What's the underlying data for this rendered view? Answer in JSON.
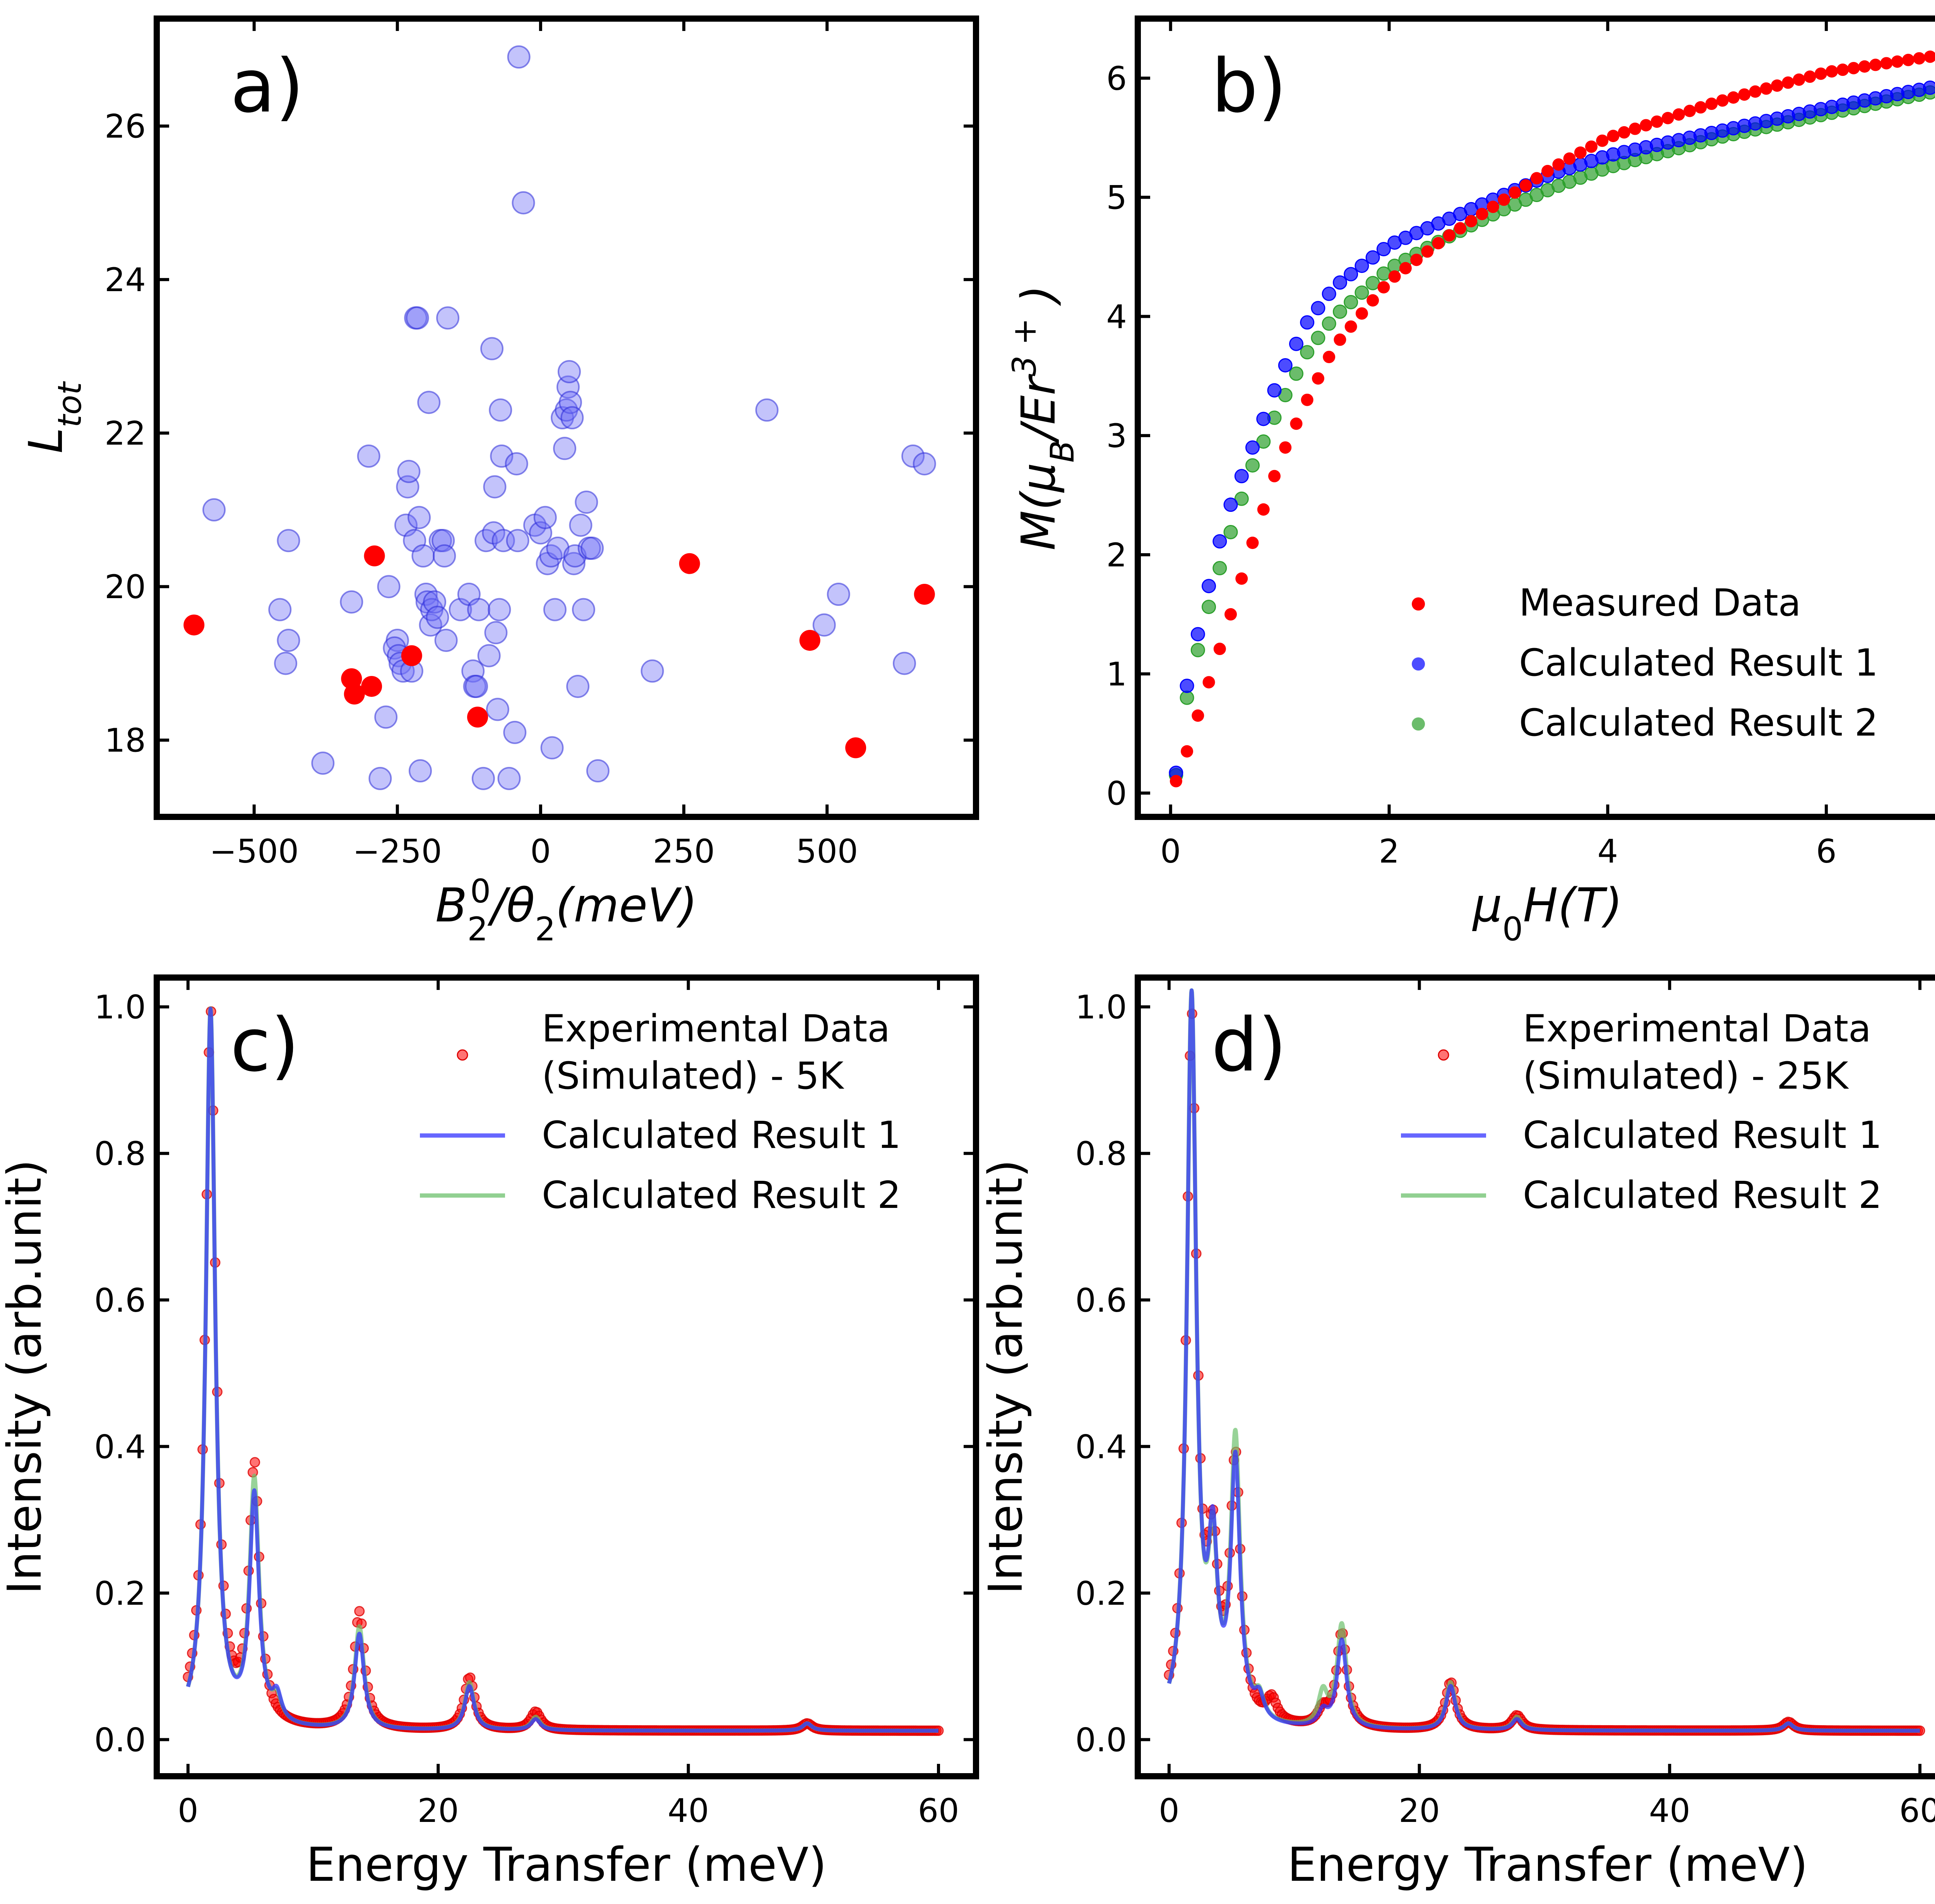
{
  "colors": {
    "red": "#ff0000",
    "blue": "#0000ff",
    "green": "#2ca02c",
    "blue_line": "#3333ff",
    "green_line": "#6cc06c",
    "scatter_blue": "#6f6ff5",
    "scatter_red": "#ff0000"
  },
  "chart_data": [
    {
      "id": "a",
      "type": "scatter",
      "panel_label": "a)",
      "xlabel": "B_2^0/θ_2(meV)",
      "ylabel": "L_tot",
      "xlim": [
        -670,
        760
      ],
      "ylim": [
        17,
        27.4
      ],
      "xticks": [
        -500,
        -250,
        0,
        250,
        500
      ],
      "xtick_labels": [
        "−500",
        "−250",
        "0",
        "250",
        "500"
      ],
      "yticks": [
        18,
        20,
        22,
        24,
        26
      ],
      "ytick_labels": [
        "18",
        "20",
        "22",
        "24",
        "26"
      ],
      "series": [
        {
          "name": "candidates",
          "color_key": "scatter_blue",
          "points": [
            [
              -570,
              21.0
            ],
            [
              -440,
              20.6
            ],
            [
              -455,
              19.7
            ],
            [
              -440,
              19.3
            ],
            [
              -445,
              19.0
            ],
            [
              -380,
              17.7
            ],
            [
              -330,
              19.8
            ],
            [
              -300,
              21.7
            ],
            [
              -280,
              17.5
            ],
            [
              -270,
              18.3
            ],
            [
              -265,
              20.0
            ],
            [
              -250,
              19.3
            ],
            [
              -255,
              19.2
            ],
            [
              -248,
              19.1
            ],
            [
              -245,
              19.0
            ],
            [
              -240,
              18.9
            ],
            [
              -235,
              20.8
            ],
            [
              -232,
              21.3
            ],
            [
              -230,
              21.5
            ],
            [
              -225,
              18.9
            ],
            [
              -220,
              20.6
            ],
            [
              -218,
              23.5
            ],
            [
              -215,
              23.5
            ],
            [
              -212,
              20.9
            ],
            [
              -210,
              17.6
            ],
            [
              -205,
              20.4
            ],
            [
              -200,
              19.9
            ],
            [
              -198,
              19.8
            ],
            [
              -195,
              22.4
            ],
            [
              -192,
              19.5
            ],
            [
              -190,
              19.7
            ],
            [
              -185,
              19.8
            ],
            [
              -180,
              19.6
            ],
            [
              -175,
              20.6
            ],
            [
              -170,
              20.6
            ],
            [
              -168,
              20.4
            ],
            [
              -165,
              19.3
            ],
            [
              -162,
              23.5
            ],
            [
              -140,
              19.7
            ],
            [
              -125,
              19.9
            ],
            [
              -118,
              18.9
            ],
            [
              -115,
              18.7
            ],
            [
              -112,
              18.7
            ],
            [
              -108,
              19.7
            ],
            [
              -100,
              17.5
            ],
            [
              -95,
              20.6
            ],
            [
              -90,
              19.1
            ],
            [
              -85,
              23.1
            ],
            [
              -82,
              20.7
            ],
            [
              -80,
              21.3
            ],
            [
              -78,
              19.4
            ],
            [
              -75,
              18.4
            ],
            [
              -72,
              19.7
            ],
            [
              -70,
              22.3
            ],
            [
              -68,
              21.7
            ],
            [
              -65,
              20.6
            ],
            [
              -55,
              17.5
            ],
            [
              -45,
              18.1
            ],
            [
              -42,
              21.6
            ],
            [
              -40,
              20.6
            ],
            [
              -38,
              26.9
            ],
            [
              -30,
              25.0
            ],
            [
              -10,
              20.8
            ],
            [
              0,
              20.7
            ],
            [
              8,
              20.9
            ],
            [
              12,
              20.3
            ],
            [
              18,
              20.4
            ],
            [
              20,
              17.9
            ],
            [
              25,
              19.7
            ],
            [
              30,
              20.5
            ],
            [
              38,
              22.2
            ],
            [
              42,
              21.8
            ],
            [
              45,
              22.3
            ],
            [
              48,
              22.6
            ],
            [
              50,
              22.8
            ],
            [
              52,
              22.4
            ],
            [
              55,
              22.2
            ],
            [
              58,
              20.3
            ],
            [
              60,
              20.4
            ],
            [
              65,
              18.7
            ],
            [
              70,
              20.8
            ],
            [
              75,
              19.7
            ],
            [
              80,
              21.1
            ],
            [
              85,
              20.5
            ],
            [
              90,
              20.5
            ],
            [
              100,
              17.6
            ],
            [
              195,
              18.9
            ],
            [
              395,
              22.3
            ],
            [
              495,
              19.5
            ],
            [
              520,
              19.9
            ],
            [
              635,
              19.0
            ],
            [
              650,
              21.7
            ],
            [
              670,
              21.6
            ]
          ]
        },
        {
          "name": "selected",
          "color_key": "scatter_red",
          "points": [
            [
              -605,
              19.5
            ],
            [
              -290,
              20.4
            ],
            [
              -330,
              18.8
            ],
            [
              -325,
              18.6
            ],
            [
              -295,
              18.7
            ],
            [
              -225,
              19.1
            ],
            [
              -110,
              18.3
            ],
            [
              260,
              20.3
            ],
            [
              470,
              19.3
            ],
            [
              550,
              17.9
            ],
            [
              670,
              19.9
            ]
          ]
        }
      ]
    },
    {
      "id": "b",
      "type": "scatter",
      "panel_label": "b)",
      "xlabel": "μ_0H(T)",
      "ylabel": "M(μ_B/Er^3+)",
      "xlim": [
        -0.3,
        7.2
      ],
      "ylim": [
        -0.2,
        6.5
      ],
      "xticks": [
        0,
        2,
        4,
        6
      ],
      "xtick_labels": [
        "0",
        "2",
        "4",
        "6"
      ],
      "yticks": [
        0,
        1,
        2,
        3,
        4,
        5,
        6
      ],
      "ytick_labels": [
        "0",
        "1",
        "2",
        "3",
        "4",
        "5",
        "6"
      ],
      "x_range": [
        0.05,
        6.95
      ],
      "n_points": 70,
      "legend": {
        "placement": "lower-right",
        "entries": [
          "Measured Data",
          "Calculated Result 1",
          "Calculated Result 2"
        ]
      },
      "series": [
        {
          "name": "Measured Data",
          "color_key": "red",
          "points": [
            [
              0.05,
              0.1
            ],
            [
              0.15,
              0.35
            ],
            [
              0.25,
              0.65
            ],
            [
              0.5,
              1.35
            ],
            [
              0.75,
              2.1
            ],
            [
              1.0,
              2.8
            ],
            [
              1.25,
              3.3
            ],
            [
              1.5,
              3.75
            ],
            [
              2.0,
              4.3
            ],
            [
              2.5,
              4.65
            ],
            [
              3.0,
              4.95
            ],
            [
              3.5,
              5.25
            ],
            [
              4.0,
              5.5
            ],
            [
              5.0,
              5.8
            ],
            [
              6.0,
              6.05
            ],
            [
              6.95,
              6.18
            ]
          ]
        },
        {
          "name": "Calculated Result 1",
          "color_key": "blue",
          "points": [
            [
              0.05,
              0.17
            ],
            [
              0.15,
              0.9
            ],
            [
              0.3,
              1.55
            ],
            [
              0.5,
              2.3
            ],
            [
              0.75,
              2.9
            ],
            [
              1.0,
              3.5
            ],
            [
              1.25,
              3.95
            ],
            [
              1.5,
              4.25
            ],
            [
              2.0,
              4.6
            ],
            [
              2.5,
              4.8
            ],
            [
              3.0,
              5.0
            ],
            [
              3.5,
              5.2
            ],
            [
              4.0,
              5.35
            ],
            [
              5.0,
              5.55
            ],
            [
              6.0,
              5.75
            ],
            [
              6.95,
              5.92
            ]
          ]
        },
        {
          "name": "Calculated Result 2",
          "color_key": "green",
          "points": [
            [
              0.05,
              0.15
            ],
            [
              0.15,
              0.8
            ],
            [
              0.3,
              1.4
            ],
            [
              0.5,
              2.05
            ],
            [
              0.75,
              2.75
            ],
            [
              1.0,
              3.25
            ],
            [
              1.25,
              3.7
            ],
            [
              1.5,
              4.0
            ],
            [
              2.0,
              4.4
            ],
            [
              2.5,
              4.65
            ],
            [
              3.0,
              4.88
            ],
            [
              3.5,
              5.08
            ],
            [
              4.0,
              5.25
            ],
            [
              5.0,
              5.5
            ],
            [
              6.0,
              5.7
            ],
            [
              6.95,
              5.88
            ]
          ]
        }
      ]
    },
    {
      "id": "c",
      "type": "line",
      "panel_label": "c)",
      "xlabel": "Energy Transfer (meV)",
      "ylabel": "Intensity (arb.unit)",
      "xlim": [
        -2.5,
        63
      ],
      "ylim": [
        -0.05,
        1.04
      ],
      "xticks": [
        0,
        20,
        40,
        60
      ],
      "xtick_labels": [
        "0",
        "20",
        "40",
        "60"
      ],
      "yticks": [
        0.0,
        0.2,
        0.4,
        0.6,
        0.8,
        1.0
      ],
      "ytick_labels": [
        "0.0",
        "0.2",
        "0.4",
        "0.6",
        "0.8",
        "1.0"
      ],
      "x_range": [
        0,
        60
      ],
      "legend": {
        "placement": "upper-right",
        "entries": [
          "Experimental Data\n(Simulated) - 5K",
          "Calculated Result 1",
          "Calculated Result 2"
        ]
      },
      "series": [
        {
          "name": "Experimental Data (Simulated) - 5K",
          "style": "markers",
          "color_key": "red",
          "gamma": 0.5,
          "offset": 0.012,
          "peaks": [
            [
              1.8,
              0.98
            ],
            [
              5.3,
              0.35
            ],
            [
              13.7,
              0.16
            ],
            [
              22.5,
              0.072
            ],
            [
              27.8,
              0.025
            ],
            [
              49.5,
              0.01
            ]
          ]
        },
        {
          "name": "Calculated Result 1",
          "style": "line",
          "color_key": "blue_line",
          "gamma": 0.45,
          "offset": 0.012,
          "peaks": [
            [
              1.8,
              0.98
            ],
            [
              5.3,
              0.31
            ],
            [
              7.1,
              0.035
            ],
            [
              13.7,
              0.13
            ],
            [
              22.5,
              0.06
            ],
            [
              27.8,
              0.015
            ],
            [
              49.5,
              0.01
            ]
          ]
        },
        {
          "name": "Calculated Result 2",
          "style": "line",
          "color_key": "green_line",
          "gamma": 0.45,
          "offset": 0.012,
          "peaks": [
            [
              1.8,
              0.98
            ],
            [
              5.3,
              0.33
            ],
            [
              7.1,
              0.03
            ],
            [
              13.7,
              0.14
            ],
            [
              22.5,
              0.065
            ],
            [
              27.8,
              0.018
            ],
            [
              49.5,
              0.01
            ]
          ]
        }
      ]
    },
    {
      "id": "d",
      "type": "line",
      "panel_label": "d)",
      "xlabel": "Energy Transfer (meV)",
      "ylabel": "Intensity (arb.unit)",
      "xlim": [
        -2.5,
        63
      ],
      "ylim": [
        -0.05,
        1.04
      ],
      "xticks": [
        0,
        20,
        40,
        60
      ],
      "xtick_labels": [
        "0",
        "20",
        "40",
        "60"
      ],
      "yticks": [
        0.0,
        0.2,
        0.4,
        0.6,
        0.8,
        1.0
      ],
      "ytick_labels": [
        "0.0",
        "0.2",
        "0.4",
        "0.6",
        "0.8",
        "1.0"
      ],
      "x_range": [
        0,
        60
      ],
      "legend": {
        "placement": "upper-right",
        "entries": [
          "Experimental Data\n(Simulated) - 25K",
          "Calculated Result 1",
          "Calculated Result 2"
        ]
      },
      "series": [
        {
          "name": "Experimental Data (Simulated) - 25K",
          "style": "markers",
          "color_key": "red",
          "gamma": 0.5,
          "offset": 0.012,
          "peaks": [
            [
              1.8,
              0.96
            ],
            [
              3.5,
              0.2
            ],
            [
              5.3,
              0.35
            ],
            [
              8.2,
              0.03
            ],
            [
              12.3,
              0.02
            ],
            [
              13.8,
              0.13
            ],
            [
              22.5,
              0.065
            ],
            [
              27.8,
              0.02
            ],
            [
              49.5,
              0.012
            ]
          ]
        },
        {
          "name": "Calculated Result 1",
          "style": "line",
          "color_key": "blue_line",
          "gamma": 0.45,
          "offset": 0.012,
          "peaks": [
            [
              1.8,
              0.99
            ],
            [
              3.5,
              0.22
            ],
            [
              5.3,
              0.35
            ],
            [
              7.2,
              0.03
            ],
            [
              12.3,
              0.02
            ],
            [
              13.8,
              0.12
            ],
            [
              22.5,
              0.06
            ],
            [
              27.8,
              0.015
            ],
            [
              49.5,
              0.01
            ]
          ]
        },
        {
          "name": "Calculated Result 2",
          "style": "line",
          "color_key": "green_line",
          "gamma": 0.45,
          "offset": 0.012,
          "peaks": [
            [
              1.8,
              0.99
            ],
            [
              3.5,
              0.21
            ],
            [
              5.3,
              0.38
            ],
            [
              7.2,
              0.03
            ],
            [
              12.3,
              0.045
            ],
            [
              13.8,
              0.14
            ],
            [
              22.5,
              0.065
            ],
            [
              27.8,
              0.018
            ],
            [
              49.5,
              0.01
            ]
          ]
        }
      ]
    }
  ]
}
